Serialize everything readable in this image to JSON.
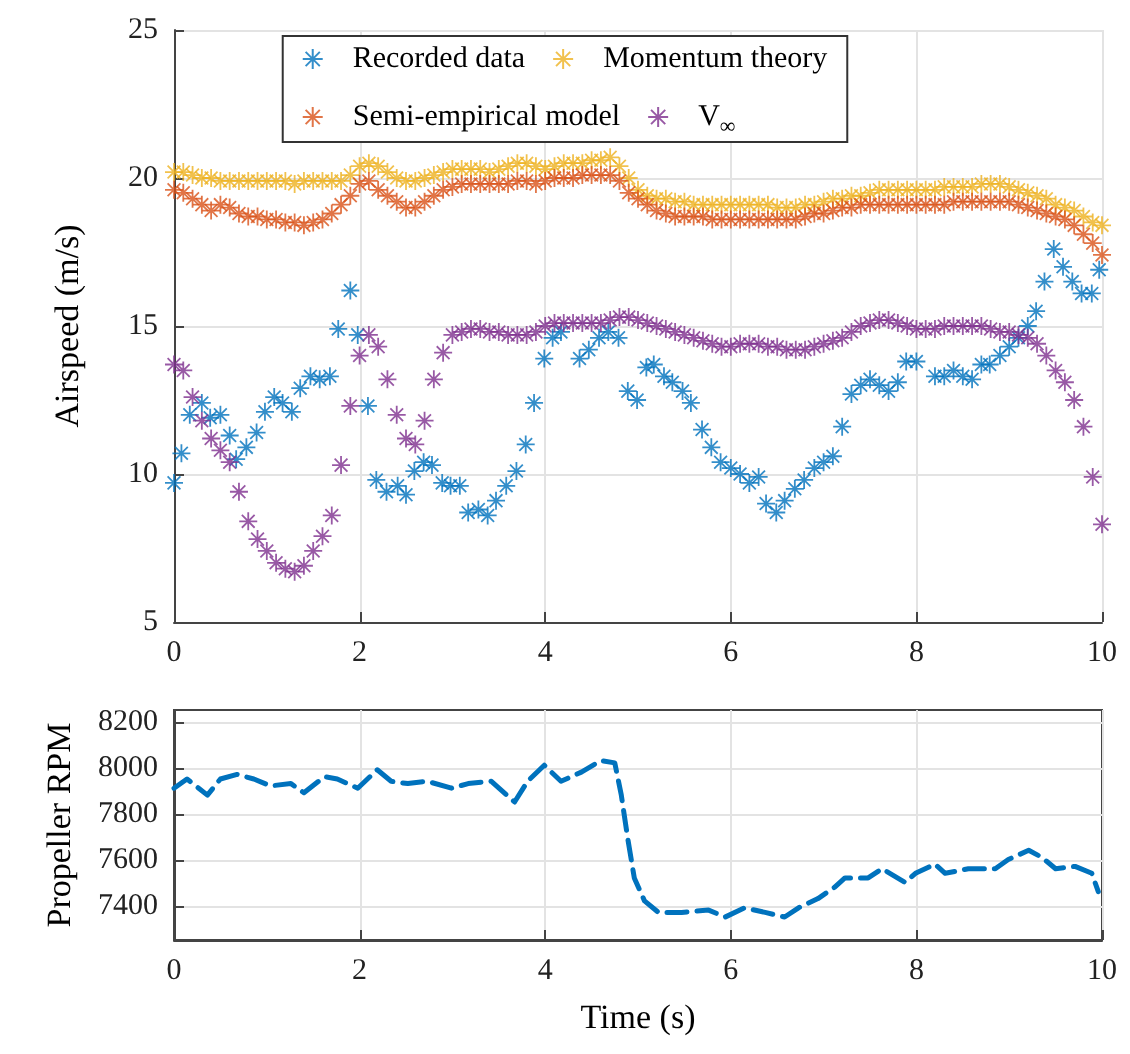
{
  "chart_data": [
    {
      "type": "scatter",
      "ylabel": "Airspeed (m/s)",
      "xlim": [
        0,
        10
      ],
      "xticks": [
        0,
        2,
        4,
        6,
        8,
        10
      ],
      "ylim": [
        5,
        25
      ],
      "yticks": [
        5,
        10,
        15,
        20,
        25
      ],
      "grid": true,
      "legend": "top",
      "marker": "star",
      "x": [
        0,
        0.1,
        0.2,
        0.3,
        0.4,
        0.5,
        0.6,
        0.7,
        0.8,
        0.9,
        1,
        1.1,
        1.2,
        1.3,
        1.4,
        1.5,
        1.6,
        1.7,
        1.8,
        1.9,
        2,
        2.1,
        2.2,
        2.3,
        2.4,
        2.5,
        2.6,
        2.7,
        2.8,
        2.9,
        3,
        3.1,
        3.2,
        3.3,
        3.4,
        3.5,
        3.6,
        3.7,
        3.8,
        3.9,
        4,
        4.1,
        4.2,
        4.3,
        4.4,
        4.5,
        4.6,
        4.7,
        4.8,
        4.9,
        5,
        5.1,
        5.2,
        5.3,
        5.4,
        5.5,
        5.6,
        5.7,
        5.8,
        5.9,
        6,
        6.1,
        6.2,
        6.3,
        6.4,
        6.5,
        6.6,
        6.7,
        6.8,
        6.9,
        7,
        7.1,
        7.2,
        7.3,
        7.4,
        7.5,
        7.6,
        7.7,
        7.8,
        7.9,
        8,
        8.1,
        8.2,
        8.3,
        8.4,
        8.5,
        8.6,
        8.7,
        8.8,
        8.9,
        9,
        9.1,
        9.2,
        9.3,
        9.4,
        9.5,
        9.6,
        9.7,
        9.8,
        9.9,
        10
      ],
      "series": [
        {
          "name": "Recorded data",
          "color": "#0072bd",
          "x": [
            0,
            0.08,
            0.17,
            0.3,
            0.39,
            0.5,
            0.6,
            0.67,
            0.78,
            0.89,
            0.98,
            1.08,
            1.17,
            1.27,
            1.36,
            1.47,
            1.57,
            1.68,
            1.77,
            1.9,
            1.98,
            2.09,
            2.18,
            2.29,
            2.41,
            2.5,
            2.59,
            2.69,
            2.78,
            2.89,
            2.98,
            3.08,
            3.17,
            3.28,
            3.38,
            3.47,
            3.58,
            3.69,
            3.79,
            3.88,
            3.99,
            4.08,
            4.17,
            4.37,
            4.47,
            4.58,
            4.68,
            4.79,
            4.89,
            4.99,
            5.09,
            5.17,
            5.28,
            5.37,
            5.48,
            5.57,
            5.69,
            5.79,
            5.89,
            6,
            6.1,
            6.2,
            6.3,
            6.38,
            6.49,
            6.58,
            6.69,
            6.79,
            6.9,
            7,
            7.1,
            7.2,
            7.3,
            7.4,
            7.5,
            7.6,
            7.7,
            7.8,
            7.89,
            8,
            8.2,
            8.3,
            8.4,
            8.5,
            8.6,
            8.7,
            8.79,
            8.9,
            9,
            9.1,
            9.2,
            9.29,
            9.38,
            9.48,
            9.58,
            9.68,
            9.78,
            9.89,
            9.97
          ],
          "values": [
            9.7,
            10.7,
            12,
            12.4,
            11.9,
            12,
            11.3,
            10.5,
            10.9,
            11.4,
            12.1,
            12.6,
            12.4,
            12.1,
            12.9,
            13.3,
            13.2,
            13.3,
            14.9,
            16.2,
            14.7,
            12.3,
            9.8,
            9.4,
            9.6,
            9.3,
            10.1,
            10.4,
            10.3,
            9.7,
            9.6,
            9.6,
            8.7,
            8.8,
            8.6,
            9.1,
            9.6,
            10.1,
            11,
            12.4,
            13.9,
            14.6,
            14.8,
            13.9,
            14.2,
            14.6,
            14.8,
            14.6,
            12.8,
            12.5,
            13.6,
            13.7,
            13.3,
            13.1,
            12.8,
            12.4,
            11.5,
            10.9,
            10.4,
            10.2,
            10,
            9.7,
            9.9,
            9,
            8.7,
            9.1,
            9.5,
            9.8,
            10.2,
            10.4,
            10.6,
            11.6,
            12.7,
            13,
            13.2,
            13,
            12.8,
            13.1,
            13.8,
            13.8,
            13.3,
            13.3,
            13.5,
            13.3,
            13.2,
            13.7,
            13.7,
            14,
            14.3,
            14.6,
            15,
            15.5,
            16.5,
            17.6,
            17,
            16.5,
            16.1,
            16.1,
            16.9
          ]
        },
        {
          "name": "Momentum theory",
          "color": "#edb120",
          "values": [
            20.2,
            20.2,
            20.1,
            20,
            20,
            19.9,
            19.9,
            19.9,
            19.9,
            19.9,
            19.9,
            19.9,
            19.9,
            19.8,
            19.9,
            19.9,
            19.9,
            19.9,
            19.9,
            20.1,
            20.4,
            20.5,
            20.4,
            20.2,
            20,
            19.9,
            19.9,
            20,
            20.1,
            20.2,
            20.3,
            20.3,
            20.3,
            20.3,
            20.2,
            20.3,
            20.4,
            20.5,
            20.5,
            20.4,
            20.3,
            20.4,
            20.5,
            20.5,
            20.5,
            20.6,
            20.6,
            20.7,
            20.4,
            20,
            19.6,
            19.4,
            19.3,
            19.3,
            19.2,
            19.2,
            19.1,
            19.1,
            19.1,
            19.1,
            19.1,
            19.1,
            19.1,
            19.1,
            19.1,
            19,
            19,
            19,
            19.1,
            19.1,
            19.2,
            19.3,
            19.3,
            19.4,
            19.4,
            19.5,
            19.6,
            19.6,
            19.6,
            19.6,
            19.6,
            19.6,
            19.6,
            19.7,
            19.7,
            19.7,
            19.7,
            19.8,
            19.8,
            19.8,
            19.7,
            19.6,
            19.5,
            19.4,
            19.3,
            19.1,
            19,
            18.9,
            18.7,
            18.5,
            18.4
          ]
        },
        {
          "name": "Semi-empirical model",
          "color": "#d95319",
          "values": [
            19.6,
            19.5,
            19.3,
            19.1,
            18.9,
            19.1,
            19,
            18.8,
            18.7,
            18.7,
            18.6,
            18.6,
            18.5,
            18.5,
            18.4,
            18.5,
            18.6,
            18.8,
            19.1,
            19.4,
            19.8,
            19.9,
            19.6,
            19.4,
            19.2,
            19,
            19,
            19.2,
            19.4,
            19.6,
            19.7,
            19.8,
            19.8,
            19.8,
            19.8,
            19.8,
            19.8,
            19.9,
            19.9,
            19.8,
            19.9,
            20,
            20,
            20,
            20.1,
            20.1,
            20.1,
            20.1,
            19.9,
            19.5,
            19.3,
            19.1,
            18.9,
            18.8,
            18.7,
            18.7,
            18.7,
            18.7,
            18.6,
            18.6,
            18.6,
            18.6,
            18.6,
            18.6,
            18.6,
            18.6,
            18.6,
            18.6,
            18.7,
            18.8,
            18.8,
            18.9,
            19,
            19,
            19.1,
            19.1,
            19.1,
            19.1,
            19.1,
            19.1,
            19.1,
            19.1,
            19.1,
            19.1,
            19.2,
            19.2,
            19.2,
            19.2,
            19.2,
            19.2,
            19.2,
            19.1,
            19,
            18.9,
            18.8,
            18.7,
            18.6,
            18.4,
            18.1,
            17.8,
            17.4
          ]
        },
        {
          "name": "V$_{∞}$",
          "color": "#7e2f8e",
          "values": [
            13.7,
            13.5,
            12.6,
            11.8,
            11.2,
            10.8,
            10.4,
            9.4,
            8.4,
            7.8,
            7.4,
            7,
            6.8,
            6.7,
            6.9,
            7.4,
            7.9,
            8.6,
            10.3,
            12.3,
            14,
            14.7,
            14.3,
            13.2,
            12,
            11.2,
            11,
            11.8,
            13.2,
            14.1,
            14.7,
            14.8,
            14.9,
            14.9,
            14.8,
            14.8,
            14.7,
            14.7,
            14.7,
            14.8,
            15,
            15.1,
            15.1,
            15.1,
            15.1,
            15.1,
            15.1,
            15.2,
            15.3,
            15.3,
            15.2,
            15.1,
            15,
            14.9,
            14.8,
            14.7,
            14.6,
            14.5,
            14.4,
            14.3,
            14.3,
            14.4,
            14.4,
            14.4,
            14.3,
            14.3,
            14.2,
            14.2,
            14.2,
            14.3,
            14.4,
            14.5,
            14.6,
            14.8,
            15,
            15.1,
            15.2,
            15.2,
            15.1,
            15,
            14.9,
            14.9,
            14.9,
            15,
            15,
            15,
            15,
            15,
            14.9,
            14.8,
            14.8,
            14.7,
            14.6,
            14.4,
            14,
            13.5,
            13.1,
            12.5,
            11.6,
            9.9,
            8.3
          ]
        }
      ]
    },
    {
      "type": "line",
      "xlabel": "Time (s)",
      "ylabel": "Propeller RPM",
      "xlim": [
        0,
        10
      ],
      "xticks": [
        0,
        2,
        4,
        6,
        8,
        10
      ],
      "ylim": [
        7250,
        8250
      ],
      "yticks": [
        7400,
        7600,
        7800,
        8000,
        8200
      ],
      "grid": true,
      "marker": "none",
      "line_style": "dashed",
      "series": [
        {
          "color": "#0072bd",
          "x": [
            0,
            0.14,
            0.36,
            0.5,
            0.68,
            0.86,
            1.04,
            1.26,
            1.4,
            1.62,
            1.76,
            1.98,
            2.19,
            2.34,
            2.52,
            2.73,
            2.99,
            3.17,
            3.42,
            3.67,
            3.81,
            3.99,
            4.17,
            4.39,
            4.6,
            4.75,
            4.82,
            4.89,
            4.96,
            5.07,
            5.22,
            5.47,
            5.76,
            5.94,
            6.15,
            6.37,
            6.58,
            6.73,
            6.94,
            7.12,
            7.23,
            7.48,
            7.63,
            7.88,
            7.99,
            8.2,
            8.31,
            8.56,
            8.85,
            8.99,
            9.21,
            9.35,
            9.5,
            9.71,
            9.89,
            9.96
          ],
          "values": [
            7910,
            7950,
            7880,
            7950,
            7970,
            7950,
            7920,
            7930,
            7890,
            7960,
            7950,
            7910,
            7990,
            7940,
            7930,
            7940,
            7910,
            7930,
            7940,
            7850,
            7940,
            8010,
            7940,
            7980,
            8030,
            8020,
            7880,
            7690,
            7520,
            7420,
            7370,
            7370,
            7380,
            7350,
            7390,
            7370,
            7350,
            7390,
            7430,
            7480,
            7520,
            7520,
            7560,
            7500,
            7540,
            7580,
            7540,
            7560,
            7560,
            7600,
            7640,
            7610,
            7560,
            7570,
            7540,
            7460
          ]
        }
      ]
    }
  ]
}
